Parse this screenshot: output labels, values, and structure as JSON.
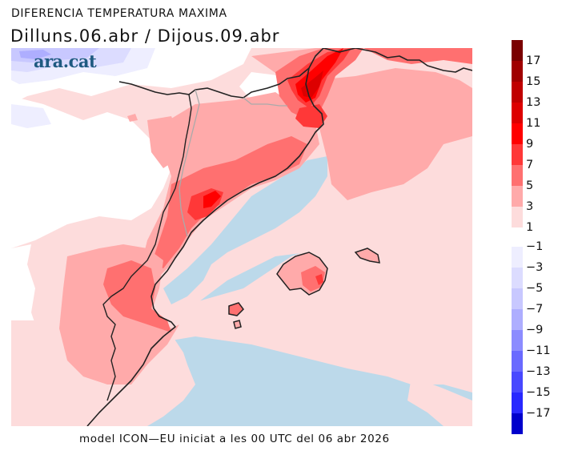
{
  "header": {
    "title": "DIFERENCIA TEMPERATURA MAXIMA",
    "subtitle": "Dilluns.06.abr / Dijous.09.abr"
  },
  "logo": {
    "text": "ara.cat",
    "color": "#1f5a80"
  },
  "caption": "model ICON—EU iniciat a les 00 UTC del 06 abr 2026",
  "map": {
    "region": "Catalonia, Valencia, Balearic Islands, southern France",
    "sea_color": "#bcd9ea",
    "border_color": "#222222",
    "internal_border_color": "#aaaaaa"
  },
  "legend": {
    "positive": [
      {
        "label": "17",
        "color": "#7a0000"
      },
      {
        "label": "15",
        "color": "#a00000"
      },
      {
        "label": "13",
        "color": "#c00000"
      },
      {
        "label": "11",
        "color": "#dd0000"
      },
      {
        "label": "9",
        "color": "#ff0000"
      },
      {
        "label": "7",
        "color": "#ff3838"
      },
      {
        "label": "5",
        "color": "#ff7070"
      },
      {
        "label": "3",
        "color": "#ffaaaa"
      },
      {
        "label": "1",
        "color": "#fddcdc"
      }
    ],
    "negative": [
      {
        "label": "−1",
        "color": "#eeeeff"
      },
      {
        "label": "−3",
        "color": "#dcdcff"
      },
      {
        "label": "−5",
        "color": "#c8c8ff"
      },
      {
        "label": "−7",
        "color": "#aeaeff"
      },
      {
        "label": "−9",
        "color": "#8c8cff"
      },
      {
        "label": "−11",
        "color": "#6a6aff"
      },
      {
        "label": "−13",
        "color": "#4848ff"
      },
      {
        "label": "−15",
        "color": "#2828ff"
      },
      {
        "label": "−17",
        "color": "#0000cc"
      }
    ]
  }
}
